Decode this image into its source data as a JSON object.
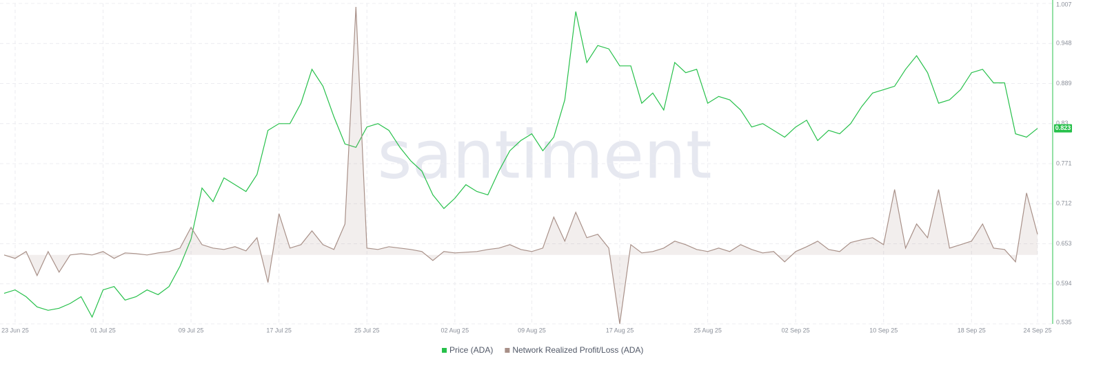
{
  "chart_data": {
    "type": "line",
    "watermark": "santiment",
    "x": [
      "2025-06-22",
      "2025-06-23",
      "2025-06-24",
      "2025-06-25",
      "2025-06-26",
      "2025-06-27",
      "2025-06-28",
      "2025-06-29",
      "2025-06-30",
      "2025-07-01",
      "2025-07-02",
      "2025-07-03",
      "2025-07-04",
      "2025-07-05",
      "2025-07-06",
      "2025-07-07",
      "2025-07-08",
      "2025-07-09",
      "2025-07-10",
      "2025-07-11",
      "2025-07-12",
      "2025-07-13",
      "2025-07-14",
      "2025-07-15",
      "2025-07-16",
      "2025-07-17",
      "2025-07-18",
      "2025-07-19",
      "2025-07-20",
      "2025-07-21",
      "2025-07-22",
      "2025-07-23",
      "2025-07-24",
      "2025-07-25",
      "2025-07-26",
      "2025-07-27",
      "2025-07-28",
      "2025-07-29",
      "2025-07-30",
      "2025-07-31",
      "2025-08-01",
      "2025-08-02",
      "2025-08-03",
      "2025-08-04",
      "2025-08-05",
      "2025-08-06",
      "2025-08-07",
      "2025-08-08",
      "2025-08-09",
      "2025-08-10",
      "2025-08-11",
      "2025-08-12",
      "2025-08-13",
      "2025-08-14",
      "2025-08-15",
      "2025-08-16",
      "2025-08-17",
      "2025-08-18",
      "2025-08-19",
      "2025-08-20",
      "2025-08-21",
      "2025-08-22",
      "2025-08-23",
      "2025-08-24",
      "2025-08-25",
      "2025-08-26",
      "2025-08-27",
      "2025-08-28",
      "2025-08-29",
      "2025-08-30",
      "2025-08-31",
      "2025-09-01",
      "2025-09-02",
      "2025-09-03",
      "2025-09-04",
      "2025-09-05",
      "2025-09-06",
      "2025-09-07",
      "2025-09-08",
      "2025-09-09",
      "2025-09-10",
      "2025-09-11",
      "2025-09-12",
      "2025-09-13",
      "2025-09-14",
      "2025-09-15",
      "2025-09-16",
      "2025-09-17",
      "2025-09-18",
      "2025-09-19",
      "2025-09-20",
      "2025-09-21",
      "2025-09-22",
      "2025-09-23",
      "2025-09-24"
    ],
    "xlim": [
      "2025-06-22",
      "2025-09-24"
    ],
    "xticks": [
      {
        "value": "2025-06-23",
        "label": "23 Jun 25"
      },
      {
        "value": "2025-07-01",
        "label": "01 Jul 25"
      },
      {
        "value": "2025-07-09",
        "label": "09 Jul 25"
      },
      {
        "value": "2025-07-17",
        "label": "17 Jul 25"
      },
      {
        "value": "2025-07-25",
        "label": "25 Jul 25"
      },
      {
        "value": "2025-08-02",
        "label": "02 Aug 25"
      },
      {
        "value": "2025-08-09",
        "label": "09 Aug 25"
      },
      {
        "value": "2025-08-17",
        "label": "17 Aug 25"
      },
      {
        "value": "2025-08-25",
        "label": "25 Aug 25"
      },
      {
        "value": "2025-09-02",
        "label": "02 Sep 25"
      },
      {
        "value": "2025-09-10",
        "label": "10 Sep 25"
      },
      {
        "value": "2025-09-18",
        "label": "18 Sep 25"
      },
      {
        "value": "2025-09-24",
        "label": "24 Sep 25"
      }
    ],
    "ylim": [
      0.535,
      1.007
    ],
    "yticks": [
      0.535,
      0.594,
      0.653,
      0.712,
      0.771,
      0.83,
      0.889,
      0.948,
      1.007
    ],
    "y_axis_side": "right",
    "y2lim": [
      -100,
      365
    ],
    "grid": true,
    "legend": "bottom",
    "series": [
      {
        "name": "Price (ADA)",
        "color": "#26c04a",
        "values": [
          0.58,
          0.585,
          0.575,
          0.56,
          0.555,
          0.558,
          0.565,
          0.575,
          0.545,
          0.585,
          0.59,
          0.57,
          0.575,
          0.585,
          0.578,
          0.59,
          0.62,
          0.66,
          0.735,
          0.715,
          0.75,
          0.74,
          0.73,
          0.755,
          0.82,
          0.83,
          0.83,
          0.86,
          0.91,
          0.885,
          0.84,
          0.8,
          0.795,
          0.825,
          0.83,
          0.82,
          0.795,
          0.775,
          0.76,
          0.725,
          0.705,
          0.72,
          0.74,
          0.73,
          0.725,
          0.76,
          0.79,
          0.805,
          0.815,
          0.79,
          0.81,
          0.865,
          0.995,
          0.92,
          0.945,
          0.94,
          0.915,
          0.915,
          0.86,
          0.875,
          0.85,
          0.92,
          0.905,
          0.91,
          0.86,
          0.87,
          0.865,
          0.85,
          0.825,
          0.83,
          0.82,
          0.81,
          0.825,
          0.835,
          0.805,
          0.82,
          0.815,
          0.83,
          0.855,
          0.875,
          0.88,
          0.885,
          0.91,
          0.93,
          0.905,
          0.86,
          0.865,
          0.88,
          0.905,
          0.91,
          0.89,
          0.89,
          0.815,
          0.81,
          0.823
        ]
      },
      {
        "name": "Network Realized Profit/Loss (ADA)",
        "color": "#a89088",
        "axis": "y2",
        "values": [
          0,
          -5,
          5,
          -30,
          5,
          -25,
          0,
          2,
          0,
          5,
          -5,
          3,
          2,
          0,
          3,
          5,
          10,
          40,
          15,
          10,
          8,
          12,
          6,
          25,
          -40,
          60,
          10,
          15,
          35,
          15,
          8,
          45,
          360,
          10,
          8,
          12,
          10,
          8,
          5,
          -8,
          5,
          3,
          4,
          5,
          8,
          10,
          15,
          8,
          5,
          10,
          55,
          20,
          62,
          25,
          30,
          10,
          -100,
          15,
          3,
          5,
          10,
          20,
          15,
          8,
          5,
          10,
          5,
          15,
          8,
          3,
          5,
          -10,
          5,
          12,
          20,
          8,
          5,
          18,
          22,
          25,
          15,
          95,
          10,
          45,
          25,
          95,
          10,
          15,
          20,
          45,
          10,
          8,
          -10,
          90,
          30
        ]
      }
    ]
  }
}
